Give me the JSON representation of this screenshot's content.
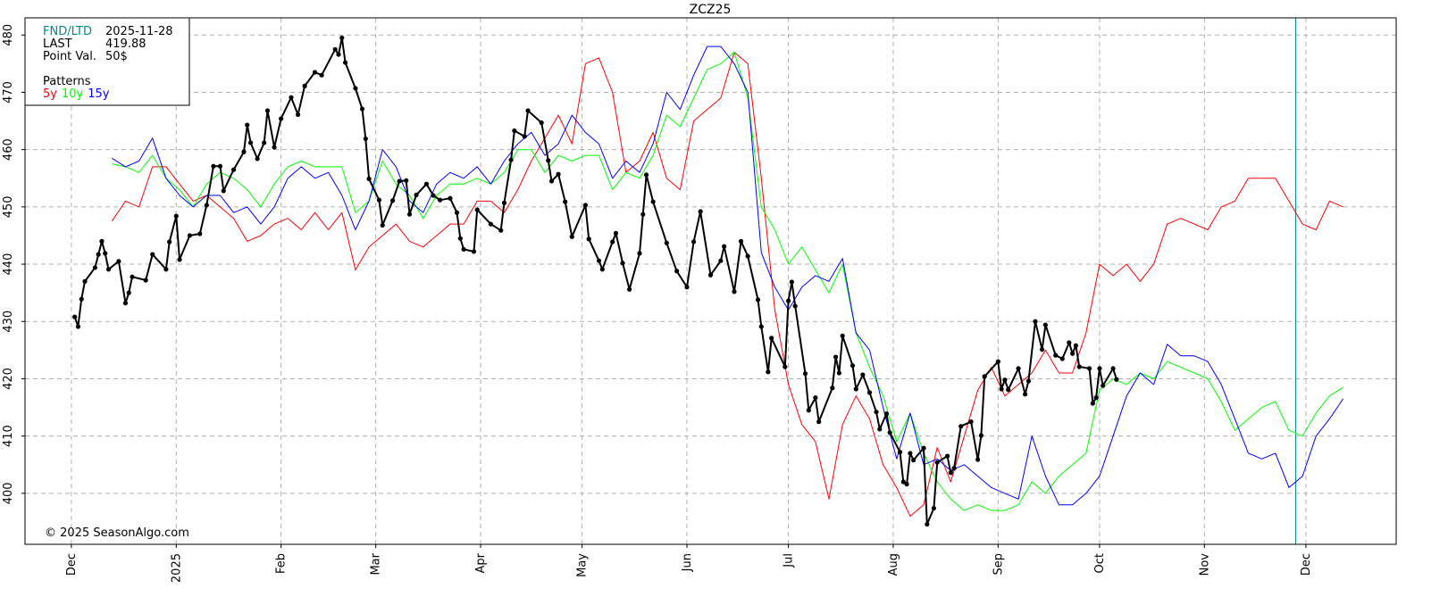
{
  "chart_data": {
    "type": "line",
    "title": "ZCZ25",
    "annotation": "© 2025 SeasonAlgo.com",
    "info": {
      "fnd_label": "FND/LTD",
      "fnd": "2025-11-28",
      "last_label": "LAST",
      "last": "419.88",
      "point_label": "Point Val.",
      "point": "50$",
      "patterns_label": "Patterns"
    },
    "fnd_line": 362,
    "fnd_color": "#008b8b",
    "grid": true,
    "xlim": [
      -13.7,
      391.7
    ],
    "ylim": [
      391.1,
      483
    ],
    "yticks": [
      400,
      410,
      420,
      430,
      440,
      450,
      460,
      470,
      480
    ],
    "xticks": [
      {
        "value": 0,
        "label": "Dec"
      },
      {
        "value": 31,
        "label": "2025"
      },
      {
        "value": 62,
        "label": "Feb"
      },
      {
        "value": 90,
        "label": "Mar"
      },
      {
        "value": 121,
        "label": "Apr"
      },
      {
        "value": 151,
        "label": "May"
      },
      {
        "value": 182,
        "label": "Jun"
      },
      {
        "value": 212,
        "label": "Jul"
      },
      {
        "value": 243,
        "label": "Aug"
      },
      {
        "value": 274,
        "label": "Sep"
      },
      {
        "value": 304,
        "label": "Oct"
      },
      {
        "value": 335,
        "label": "Nov"
      },
      {
        "value": 365,
        "label": "Dec"
      }
    ],
    "series": [
      {
        "name": "5y",
        "color": "#ff0000",
        "x": [
          12,
          16,
          20,
          24,
          28,
          32,
          36,
          40,
          44,
          48,
          52,
          56,
          60,
          64,
          68,
          72,
          76,
          80,
          84,
          88,
          92,
          96,
          100,
          104,
          108,
          112,
          116,
          120,
          124,
          128,
          132,
          136,
          140,
          144,
          148,
          152,
          156,
          160,
          164,
          168,
          172,
          176,
          180,
          184,
          188,
          192,
          196,
          200,
          204,
          208,
          212,
          216,
          220,
          224,
          228,
          232,
          236,
          240,
          244,
          248,
          252,
          256,
          260,
          264,
          268,
          272,
          276,
          280,
          284,
          288,
          292,
          296,
          300,
          304,
          308,
          312,
          316,
          320,
          324,
          328,
          332,
          336,
          340,
          344,
          348,
          352,
          356,
          360,
          364,
          368,
          372,
          376
        ],
        "values": [
          447.5,
          451,
          450,
          457,
          457,
          454,
          451,
          452,
          450,
          448,
          444,
          445,
          447,
          448,
          446,
          449,
          446,
          449,
          439,
          443,
          445,
          447,
          444,
          443,
          445,
          447,
          447,
          451,
          451,
          449,
          453,
          458,
          462,
          466,
          461,
          475,
          476,
          470,
          456,
          458,
          463,
          455,
          453,
          465,
          467,
          469,
          477,
          475,
          455,
          432,
          419,
          412,
          409,
          399,
          412,
          417,
          413,
          405,
          401,
          396,
          398,
          408,
          402,
          410,
          418,
          422,
          417,
          419,
          421,
          425,
          421,
          421,
          428,
          440,
          438,
          440,
          437,
          440,
          447,
          448,
          447,
          446,
          450,
          451,
          455,
          455,
          455,
          451,
          447,
          446,
          451,
          450
        ]
      },
      {
        "name": "10y",
        "color": "#00ff00",
        "x": [
          12,
          16,
          20,
          24,
          28,
          32,
          36,
          40,
          44,
          48,
          52,
          56,
          60,
          64,
          68,
          72,
          76,
          80,
          84,
          88,
          92,
          96,
          100,
          104,
          108,
          112,
          116,
          120,
          124,
          128,
          132,
          136,
          140,
          144,
          148,
          152,
          156,
          160,
          164,
          168,
          172,
          176,
          180,
          184,
          188,
          192,
          196,
          200,
          204,
          208,
          212,
          216,
          220,
          224,
          228,
          232,
          236,
          240,
          244,
          248,
          252,
          256,
          260,
          264,
          268,
          272,
          276,
          280,
          284,
          288,
          292,
          296,
          300,
          304,
          308,
          312,
          316,
          320,
          324,
          328,
          332,
          336,
          340,
          344,
          348,
          352,
          356,
          360,
          364,
          368,
          372,
          376
        ],
        "values": [
          457.5,
          457,
          456,
          459,
          455,
          453,
          450,
          454,
          456,
          455,
          453,
          450,
          454,
          457,
          458,
          457,
          457,
          457,
          449,
          451,
          458,
          454,
          452,
          448,
          452,
          454,
          454,
          455,
          454,
          456,
          460,
          460,
          456,
          459,
          458,
          459,
          459,
          453,
          456,
          455,
          459,
          466,
          464,
          469,
          474,
          475,
          477,
          469,
          450,
          446,
          440,
          443,
          439,
          435,
          440,
          428,
          422,
          417,
          409,
          414,
          407,
          402,
          399,
          397,
          398,
          397,
          397,
          398,
          402,
          400,
          403,
          405,
          407,
          418,
          420,
          419,
          421,
          420,
          423,
          422,
          421,
          420,
          416,
          411,
          413,
          415,
          416,
          411,
          410,
          414,
          417,
          418.5
        ]
      },
      {
        "name": "15y",
        "color": "#0000ff",
        "x": [
          12,
          16,
          20,
          24,
          28,
          32,
          36,
          40,
          44,
          48,
          52,
          56,
          60,
          64,
          68,
          72,
          76,
          80,
          84,
          88,
          92,
          96,
          100,
          104,
          108,
          112,
          116,
          120,
          124,
          128,
          132,
          136,
          140,
          144,
          148,
          152,
          156,
          160,
          164,
          168,
          172,
          176,
          180,
          184,
          188,
          192,
          196,
          200,
          204,
          208,
          212,
          216,
          220,
          224,
          228,
          232,
          236,
          240,
          244,
          248,
          252,
          256,
          260,
          264,
          268,
          272,
          276,
          280,
          284,
          288,
          292,
          296,
          300,
          304,
          308,
          312,
          316,
          320,
          324,
          328,
          332,
          336,
          340,
          344,
          348,
          352,
          356,
          360,
          364,
          368,
          372,
          376
        ],
        "values": [
          458.5,
          457,
          458,
          462,
          455,
          452,
          450,
          452,
          452,
          449,
          450,
          447,
          450,
          455,
          457,
          455,
          456,
          452,
          446,
          451,
          460,
          457,
          451,
          449,
          454,
          456,
          455,
          457,
          454,
          458,
          461,
          463,
          459,
          461,
          466,
          463,
          461,
          455,
          458,
          456,
          461,
          470,
          467,
          473,
          478,
          478,
          475,
          470,
          442,
          436,
          432,
          436,
          438,
          437,
          441,
          428,
          425,
          415,
          406,
          414,
          405,
          406,
          404,
          405,
          403,
          401,
          400,
          399,
          410,
          403,
          398,
          398,
          400,
          403,
          410,
          417,
          421,
          419,
          426,
          424,
          424,
          423,
          419,
          413,
          407,
          406,
          407,
          401,
          403,
          410,
          413,
          416.5
        ]
      },
      {
        "color": "#000000",
        "markers": true,
        "x": [
          1,
          2,
          3,
          4,
          7,
          8,
          9,
          10,
          11,
          14,
          16,
          17,
          18,
          22,
          24,
          28,
          29,
          31,
          32,
          35,
          38,
          40,
          42,
          44,
          45,
          48,
          51,
          52,
          53,
          55,
          57,
          58,
          60,
          62,
          65,
          67,
          69,
          72,
          74,
          78,
          79,
          80,
          81,
          84,
          86,
          87,
          88,
          91,
          92,
          95,
          97,
          99,
          100,
          102,
          105,
          107,
          109,
          112,
          114,
          115,
          116,
          119,
          120,
          124,
          127,
          128,
          130,
          131,
          134,
          135,
          139,
          141,
          142,
          144,
          146,
          148,
          152,
          153,
          156,
          157,
          160,
          161,
          163,
          165,
          168,
          169,
          170,
          172,
          176,
          179,
          182,
          184,
          186,
          189,
          192,
          193,
          196,
          198,
          200,
          203,
          204,
          206,
          207,
          211,
          212,
          213,
          214,
          217,
          218,
          220,
          221,
          225,
          226,
          227,
          228,
          231,
          232,
          234,
          236,
          238,
          239,
          241,
          242,
          245,
          246,
          247,
          248,
          249,
          252,
          253,
          255,
          256,
          259,
          260,
          261,
          263,
          266,
          268,
          269,
          270,
          274,
          275,
          276,
          277,
          280,
          282,
          283,
          285,
          287,
          288,
          291,
          293,
          295,
          296,
          297,
          298,
          301,
          302,
          303,
          304,
          305,
          308,
          309
        ],
        "values": [
          430.8,
          429.1,
          433.9,
          437.0,
          439.4,
          441.7,
          444.0,
          441.9,
          439.1,
          440.5,
          433.2,
          435.0,
          437.8,
          437.2,
          441.7,
          439.1,
          443.9,
          448.4,
          440.8,
          445.0,
          445.3,
          450.3,
          457.1,
          457.1,
          452.8,
          456.5,
          459.6,
          464.3,
          461.2,
          458.4,
          461.2,
          466.8,
          460.4,
          465.4,
          469.1,
          466.1,
          471.1,
          473.5,
          473.0,
          477.5,
          476.6,
          479.5,
          475.2,
          470.7,
          467.1,
          461.9,
          454.9,
          451.2,
          446.8,
          451.1,
          454.5,
          454.6,
          448.7,
          452.1,
          454.0,
          452.0,
          451.2,
          451.5,
          449.0,
          444.5,
          442.6,
          442.2,
          449.5,
          447.0,
          445.9,
          450.7,
          458.2,
          463.3,
          462.3,
          466.8,
          464.7,
          458.1,
          454.5,
          455.7,
          450.9,
          444.8,
          450.3,
          444.4,
          440.6,
          439.1,
          443.9,
          445.4,
          440.2,
          435.6,
          441.9,
          448.7,
          455.6,
          450.9,
          443.7,
          438.8,
          436.0,
          443.9,
          449.2,
          438.1,
          440.6,
          443.1,
          435.2,
          444.0,
          441.4,
          433.8,
          429.1,
          421.2,
          427.1,
          422.1,
          433.6,
          436.9,
          432.7,
          420.9,
          414.5,
          416.7,
          412.5,
          418.4,
          423.8,
          421.0,
          427.5,
          422.3,
          418.2,
          420.7,
          417.6,
          414.2,
          411.2,
          413.9,
          410.6,
          407.2,
          402.0,
          401.6,
          407.0,
          405.8,
          407.9,
          394.6,
          397.4,
          405.4,
          406.5,
          403.6,
          404.4,
          411.7,
          412.5,
          405.9,
          410.1,
          420.4,
          423.0,
          418.2,
          419.8,
          418.1,
          421.8,
          417.3,
          419.6,
          430.0,
          425.1,
          429.4,
          424.1,
          423.5,
          426.3,
          424.4,
          425.8,
          422.1,
          421.8,
          415.7,
          416.7,
          421.8,
          418.8,
          421.8,
          419.88
        ]
      }
    ]
  }
}
